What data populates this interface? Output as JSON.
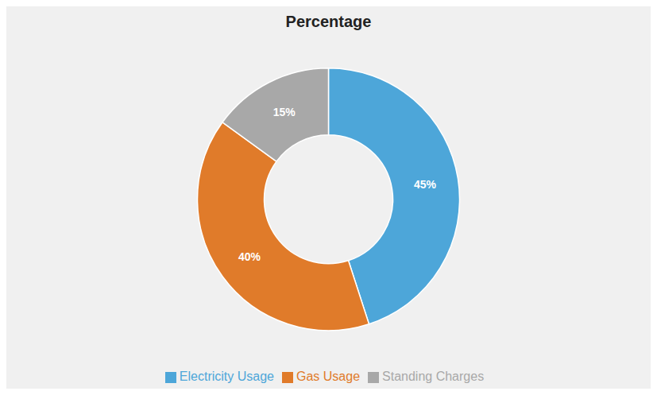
{
  "chart_data": {
    "type": "pie",
    "title": "Percentage",
    "categories": [
      "Electricity Usage",
      "Gas Usage",
      "Standing Charges"
    ],
    "values": [
      45,
      40,
      15
    ],
    "value_labels": [
      "45%",
      "40%",
      "15%"
    ],
    "colors": [
      "#4DA6D9",
      "#E07B2A",
      "#A8A8A8"
    ],
    "data_labels": true,
    "legend": "bottom"
  }
}
